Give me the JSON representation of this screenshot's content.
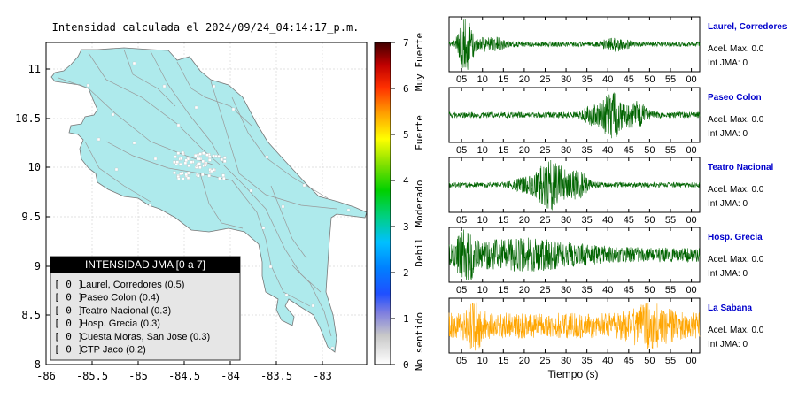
{
  "map": {
    "title": "Intensidad calculada el 2024/09/24_04:14:17_p.m.",
    "x_ticks": [
      "-86",
      "-85.5",
      "-85",
      "-84.5",
      "-84",
      "-83.5",
      "-83"
    ],
    "y_ticks": [
      "11",
      "10.5",
      "10",
      "9.5",
      "9",
      "8.5",
      "8"
    ],
    "land_color": "#aeeaec",
    "station_color": "#ffffff"
  },
  "colorbar": {
    "ticks": [
      "0",
      "1",
      "2",
      "3",
      "4",
      "5",
      "6",
      "7"
    ],
    "categories": [
      "No sentido",
      "Debil",
      "Moderado",
      "Fuerte",
      "Muy Fuerte"
    ]
  },
  "legend": {
    "header": "INTENSIDAD JMA [0 a 7]",
    "rows": [
      {
        "badge": "[ 0 ]",
        "text": "Laurel, Corredores (0.5)"
      },
      {
        "badge": "[ 0 ]",
        "text": "Paseo Colon (0.4)"
      },
      {
        "badge": "[ 0 ]",
        "text": "Teatro Nacional (0.3)"
      },
      {
        "badge": "[ 0 ]",
        "text": "Hosp. Grecia (0.3)"
      },
      {
        "badge": "[ 0 ]",
        "text": "Cuesta Moras, San Jose (0.3)"
      },
      {
        "badge": "[ 0 ]",
        "text": "CTP Jaco (0.2)"
      }
    ]
  },
  "chart_data": {
    "type": "line",
    "xlabel": "Tiempo (s)",
    "x_ticks": [
      "05",
      "10",
      "15",
      "20",
      "25",
      "30",
      "35",
      "40",
      "45",
      "50",
      "55",
      "00"
    ],
    "series": [
      {
        "name": "Laurel, Corredores",
        "accel": "Acel. Max. 0.0",
        "intensity": "Int JMA: 0",
        "color": "#006400",
        "bursts": [
          {
            "center": 6,
            "width": 1.8,
            "amp": 1.0
          },
          {
            "center": 12,
            "width": 3,
            "amp": 0.25
          },
          {
            "center": 42,
            "width": 3,
            "amp": 0.2
          }
        ],
        "noise": 0.1
      },
      {
        "name": "Paseo Colon",
        "accel": "Acel. Max. 0.0",
        "intensity": "Int JMA: 0",
        "color": "#006400",
        "bursts": [
          {
            "center": 41,
            "width": 3,
            "amp": 0.85
          },
          {
            "center": 47,
            "width": 2.5,
            "amp": 0.45
          },
          {
            "center": 36,
            "width": 2,
            "amp": 0.25
          }
        ],
        "noise": 0.12
      },
      {
        "name": "Teatro Nacional",
        "accel": "Acel. Max. 0.0",
        "intensity": "Int JMA: 0",
        "color": "#006400",
        "bursts": [
          {
            "center": 26.5,
            "width": 3.5,
            "amp": 1.0
          },
          {
            "center": 33,
            "width": 2.5,
            "amp": 0.45
          },
          {
            "center": 20,
            "width": 3,
            "amp": 0.2
          }
        ],
        "noise": 0.1
      },
      {
        "name": "Hosp. Grecia",
        "accel": "Acel. Max. 0.0",
        "intensity": "Int JMA: 0",
        "color": "#006400",
        "bursts": [
          {
            "center": 6,
            "width": 2,
            "amp": 0.8
          },
          {
            "center": 20,
            "width": 15,
            "amp": 0.4
          }
        ],
        "noise": 0.28
      },
      {
        "name": "La Sabana",
        "accel": "Acel. Max. 0.0",
        "intensity": "Int JMA: 0",
        "color": "#ffa500",
        "bursts": [
          {
            "center": 8,
            "width": 2,
            "amp": 0.6
          },
          {
            "center": 50,
            "width": 5,
            "amp": 0.45
          }
        ],
        "noise": 0.5
      }
    ]
  }
}
